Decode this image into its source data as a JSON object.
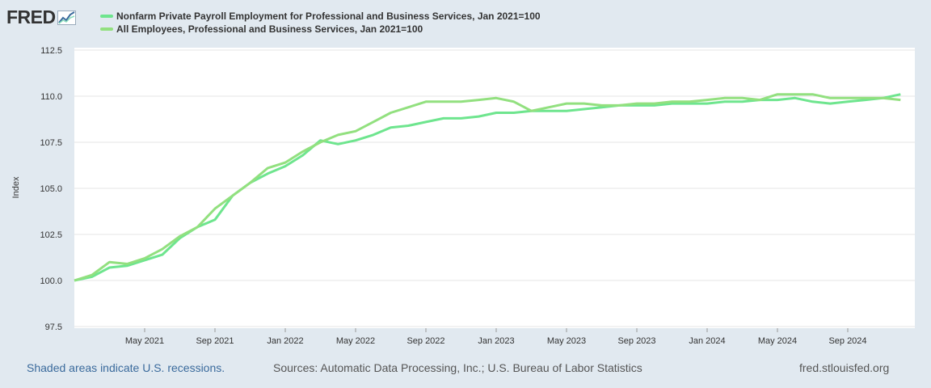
{
  "brand": {
    "logo_text": "FRED"
  },
  "colors": {
    "series1": "#6ee58e",
    "series2": "#92e07f",
    "background": "#e1e9f0",
    "plot": "#ffffff",
    "grid": "#e6e6e6"
  },
  "legend": [
    {
      "label": "Nonfarm Private Payroll Employment for Professional and Business Services, Jan 2021=100"
    },
    {
      "label": "All Employees, Professional and Business Services, Jan 2021=100"
    }
  ],
  "footer": {
    "recessions_note": "Shaded areas indicate U.S. recessions.",
    "sources": "Sources: Automatic Data Processing, Inc.; U.S. Bureau of Labor Statistics",
    "site": "fred.stlouisfed.org"
  },
  "chart_data": {
    "type": "line",
    "title": "",
    "xlabel": "",
    "ylabel": "Index",
    "ylim": [
      97.5,
      112.5
    ],
    "yticks": [
      97.5,
      100.0,
      102.5,
      105.0,
      107.5,
      110.0,
      112.5
    ],
    "ytick_labels": [
      "97.5",
      "100.0",
      "102.5",
      "105.0",
      "107.5",
      "110.0",
      "112.5"
    ],
    "xticks": [
      {
        "label": "May 2021",
        "index": 4
      },
      {
        "label": "Sep 2021",
        "index": 8
      },
      {
        "label": "Jan 2022",
        "index": 12
      },
      {
        "label": "May 2022",
        "index": 16
      },
      {
        "label": "Sep 2022",
        "index": 20
      },
      {
        "label": "Jan 2023",
        "index": 24
      },
      {
        "label": "May 2023",
        "index": 28
      },
      {
        "label": "Sep 2023",
        "index": 32
      },
      {
        "label": "Jan 2024",
        "index": 36
      },
      {
        "label": "May 2024",
        "index": 40
      },
      {
        "label": "Sep 2024",
        "index": 44
      }
    ],
    "x_start": "Jan 2021",
    "n_points": 48,
    "series": [
      {
        "name": "Nonfarm Private Payroll Employment for Professional and Business Services, Jan 2021=100",
        "values": [
          100.0,
          100.2,
          100.7,
          100.8,
          101.1,
          101.4,
          102.3,
          102.9,
          103.3,
          104.6,
          105.3,
          105.8,
          106.2,
          106.8,
          107.6,
          107.4,
          107.6,
          107.9,
          108.3,
          108.4,
          108.6,
          108.8,
          108.8,
          108.9,
          109.1,
          109.1,
          109.2,
          109.2,
          109.2,
          109.3,
          109.4,
          109.5,
          109.5,
          109.5,
          109.6,
          109.6,
          109.6,
          109.7,
          109.7,
          109.8,
          109.8,
          109.9,
          109.7,
          109.6,
          109.7,
          109.8,
          109.9,
          110.1
        ]
      },
      {
        "name": "All Employees, Professional and Business Services, Jan 2021=100",
        "values": [
          100.0,
          100.3,
          101.0,
          100.9,
          101.2,
          101.7,
          102.4,
          102.9,
          103.9,
          104.6,
          105.3,
          106.1,
          106.4,
          107.0,
          107.5,
          107.9,
          108.1,
          108.6,
          109.1,
          109.4,
          109.7,
          109.7,
          109.7,
          109.8,
          109.9,
          109.7,
          109.2,
          109.4,
          109.6,
          109.6,
          109.5,
          109.5,
          109.6,
          109.6,
          109.7,
          109.7,
          109.8,
          109.9,
          109.9,
          109.8,
          110.1,
          110.1,
          110.1,
          109.9,
          109.9,
          109.9,
          109.9,
          109.8
        ]
      }
    ]
  }
}
